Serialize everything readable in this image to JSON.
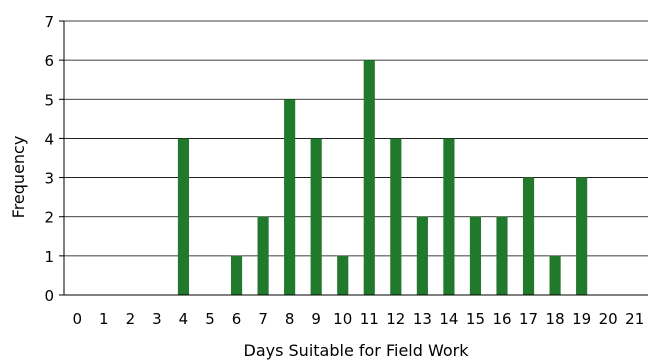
{
  "chart_data": {
    "type": "bar",
    "title": "",
    "xlabel": "Days Suitable for Field Work",
    "ylabel": "Frequency",
    "categories": [
      "0",
      "1",
      "2",
      "3",
      "4",
      "5",
      "6",
      "7",
      "8",
      "9",
      "10",
      "11",
      "12",
      "13",
      "14",
      "15",
      "16",
      "17",
      "18",
      "19",
      "20",
      "21"
    ],
    "values": [
      0,
      0,
      0,
      0,
      4,
      0,
      1,
      2,
      5,
      4,
      1,
      6,
      4,
      2,
      4,
      2,
      2,
      3,
      1,
      3,
      0,
      0
    ],
    "ylim": [
      0,
      7
    ],
    "yticks": [
      "0",
      "1",
      "2",
      "3",
      "4",
      "5",
      "6",
      "7"
    ],
    "grid": true,
    "legend": "none",
    "bar_color": "#217a2c"
  }
}
